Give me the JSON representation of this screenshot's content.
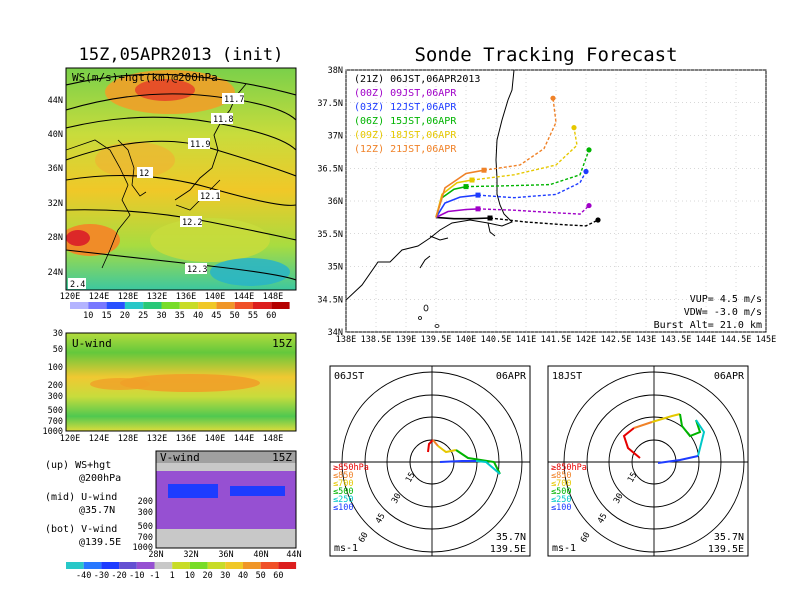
{
  "left": {
    "title": "15Z,05APR2013 (init)",
    "map_label": "WS(m/s)+hgt(km)@200hPa",
    "map_lat_ticks": [
      "44N",
      "40N",
      "36N",
      "32N",
      "28N",
      "24N"
    ],
    "map_lon_ticks": [
      "120E",
      "124E",
      "128E",
      "132E",
      "136E",
      "140E",
      "144E",
      "148E"
    ],
    "contour_labels": [
      "11.7",
      "11.8",
      "11.9",
      "12",
      "12.1",
      "12.2",
      "12.3",
      "2.4"
    ],
    "ws_colorbar": [
      "10",
      "15",
      "20",
      "25",
      "30",
      "35",
      "40",
      "45",
      "50",
      "55",
      "60"
    ],
    "uwind_title": "U-wind",
    "uwind_time": "15Z",
    "p_ticks": [
      "30",
      "50",
      "100",
      "200",
      "300",
      "500",
      "700",
      "1000"
    ],
    "uwind_lon_ticks": [
      "120E",
      "124E",
      "128E",
      "132E",
      "136E",
      "140E",
      "144E",
      "148E"
    ],
    "vwind_title": "V-wind",
    "vwind_time": "15Z",
    "vp_ticks": [
      "200",
      "300",
      "500",
      "700",
      "1000"
    ],
    "vwind_lat_ticks": [
      "28N",
      "32N",
      "36N",
      "40N",
      "44N"
    ],
    "legend": [
      "(up) WS+hgt",
      "@200hPa",
      "(mid) U-wind",
      "@35.7N",
      "(bot) V-wind",
      "@139.5E"
    ],
    "wind_colorbar": [
      "-40",
      "-30",
      "-20",
      "-10",
      "-1",
      "1",
      "10",
      "20",
      "30",
      "40",
      "50",
      "60"
    ]
  },
  "right": {
    "title": "Sonde Tracking Forecast",
    "lat_ticks": [
      "38N",
      "37.5N",
      "37N",
      "36.5N",
      "36N",
      "35.5N",
      "35N",
      "34.5N",
      "34N"
    ],
    "lon_ticks": [
      "138E",
      "138.5E",
      "139E",
      "139.5E",
      "140E",
      "140.5E",
      "141E",
      "141.5E",
      "142E",
      "142.5E",
      "143E",
      "143.5E",
      "144E",
      "144.5E",
      "145E"
    ],
    "launches": [
      {
        "text": "(21Z) 06JST,06APR2013",
        "color": "#000000"
      },
      {
        "text": "(00Z) 09JST,06APR",
        "color": "#a000c8"
      },
      {
        "text": "(03Z) 12JST,06APR",
        "color": "#1e3cff"
      },
      {
        "text": "(06Z) 15JST,06APR",
        "color": "#00b400"
      },
      {
        "text": "(09Z) 18JST,06APR",
        "color": "#e6c800"
      },
      {
        "text": "(12Z) 21JST,06APR",
        "color": "#f08228"
      }
    ],
    "params": [
      "VUP= 4.5 m/s",
      "VDW= -3.0 m/s",
      "Burst Alt= 21.0 km"
    ],
    "hodo1": {
      "time": "06JST",
      "date": "06APR"
    },
    "hodo2": {
      "time": "18JST",
      "date": "06APR"
    },
    "hodo_rings": [
      "15",
      "30",
      "45",
      "60"
    ],
    "hodo_legend": [
      "≥850hPa",
      "≤850",
      "≤700",
      "≤500",
      "≤250",
      "≤100"
    ],
    "hodo_legend_colors": [
      "#e60000",
      "#f08228",
      "#e6c800",
      "#00b400",
      "#00c8c8",
      "#1e3cff"
    ],
    "hodo_unit": "ms-1",
    "hodo_loc": [
      "35.7N",
      "139.5E"
    ]
  },
  "chart_data": {
    "type": "line",
    "title": "Sonde Tracking Forecast",
    "xlabel": "",
    "ylabel": "",
    "xlim": [
      138,
      145
    ],
    "ylim": [
      34,
      38
    ],
    "series": [
      {
        "name": "(21Z) 06JST,06APR2013",
        "color": "#000000",
        "ascent": [
          [
            139.5,
            35.75
          ],
          [
            139.8,
            35.73
          ],
          [
            140.1,
            35.73
          ],
          [
            140.4,
            35.74
          ]
        ],
        "descent": [
          [
            140.4,
            35.74
          ],
          [
            141.0,
            35.68
          ],
          [
            141.6,
            35.64
          ],
          [
            142.0,
            35.62
          ],
          [
            142.2,
            35.71
          ]
        ],
        "burst": [
          140.4,
          35.74
        ],
        "land": [
          142.2,
          35.71
        ]
      },
      {
        "name": "(00Z) 09JST,06APR",
        "color": "#a000c8",
        "ascent": [
          [
            139.5,
            35.75
          ],
          [
            139.7,
            35.84
          ],
          [
            140.0,
            35.87
          ],
          [
            140.2,
            35.88
          ]
        ],
        "descent": [
          [
            140.2,
            35.88
          ],
          [
            140.8,
            35.86
          ],
          [
            141.5,
            35.82
          ],
          [
            141.9,
            35.8
          ],
          [
            142.05,
            35.93
          ]
        ],
        "burst": [
          140.2,
          35.88
        ],
        "land": [
          142.05,
          35.93
        ]
      },
      {
        "name": "(03Z) 12JST,06APR",
        "color": "#1e3cff",
        "ascent": [
          [
            139.5,
            35.75
          ],
          [
            139.65,
            35.97
          ],
          [
            139.9,
            36.06
          ],
          [
            140.2,
            36.09
          ]
        ],
        "descent": [
          [
            140.2,
            36.09
          ],
          [
            140.8,
            36.05
          ],
          [
            141.5,
            36.1
          ],
          [
            141.9,
            36.28
          ],
          [
            142.0,
            36.45
          ]
        ],
        "burst": [
          140.2,
          36.09
        ],
        "land": [
          142.0,
          36.45
        ]
      },
      {
        "name": "(06Z) 15JST,06APR",
        "color": "#00b400",
        "ascent": [
          [
            139.5,
            35.75
          ],
          [
            139.6,
            36.05
          ],
          [
            139.8,
            36.18
          ],
          [
            140.0,
            36.22
          ]
        ],
        "descent": [
          [
            140.0,
            36.22
          ],
          [
            140.6,
            36.23
          ],
          [
            141.4,
            36.25
          ],
          [
            141.9,
            36.4
          ],
          [
            142.05,
            36.78
          ]
        ],
        "burst": [
          140.0,
          36.22
        ],
        "land": [
          142.05,
          36.78
        ]
      },
      {
        "name": "(09Z) 18JST,06APR",
        "color": "#e6c800",
        "ascent": [
          [
            139.5,
            35.75
          ],
          [
            139.6,
            36.1
          ],
          [
            139.85,
            36.28
          ],
          [
            140.1,
            36.32
          ]
        ],
        "descent": [
          [
            140.1,
            36.32
          ],
          [
            140.8,
            36.4
          ],
          [
            141.5,
            36.55
          ],
          [
            141.85,
            36.85
          ],
          [
            141.8,
            37.12
          ]
        ],
        "burst": [
          140.1,
          36.32
        ],
        "land": [
          141.8,
          37.12
        ]
      },
      {
        "name": "(12Z) 21JST,06APR",
        "color": "#f08228",
        "ascent": [
          [
            139.5,
            35.75
          ],
          [
            139.65,
            36.2
          ],
          [
            140.0,
            36.42
          ],
          [
            140.3,
            36.47
          ]
        ],
        "descent": [
          [
            140.3,
            36.47
          ],
          [
            140.9,
            36.55
          ],
          [
            141.3,
            36.8
          ],
          [
            141.5,
            37.2
          ],
          [
            141.45,
            37.57
          ]
        ],
        "burst": [
          140.3,
          36.47
        ],
        "land": [
          141.45,
          37.57
        ]
      }
    ]
  }
}
